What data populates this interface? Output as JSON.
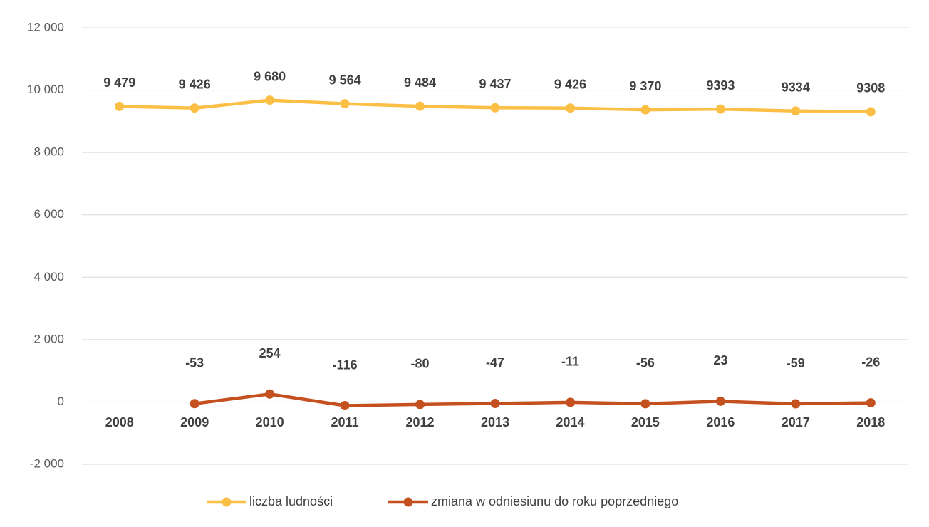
{
  "chart_data": {
    "type": "line",
    "categories": [
      "2008",
      "2009",
      "2010",
      "2011",
      "2012",
      "2013",
      "2014",
      "2015",
      "2016",
      "2017",
      "2018"
    ],
    "series": [
      {
        "name": "liczba ludności",
        "color": "#fbbf45",
        "values": [
          9479,
          9426,
          9680,
          9564,
          9484,
          9437,
          9426,
          9370,
          9393,
          9334,
          9308
        ],
        "value_labels": [
          "9 479",
          "9 426",
          "9 680",
          "9 564",
          "9 484",
          "9 437",
          "9 426",
          "9 370",
          "9393",
          "9334",
          "9308"
        ]
      },
      {
        "name": "zmiana w odniesiunu do roku poprzedniego",
        "color": "#c4501f",
        "values": [
          null,
          -53,
          254,
          -116,
          -80,
          -47,
          -11,
          -56,
          23,
          -59,
          -26
        ]
      }
    ],
    "ylim": [
      -2000,
      12000
    ],
    "yticks": [
      {
        "value": -2000,
        "label": "-2 000"
      },
      0,
      {
        "value": 2000,
        "label": "2 000"
      },
      {
        "value": 4000,
        "label": "4 000"
      },
      {
        "value": 6000,
        "label": "6 000"
      },
      {
        "value": 8000,
        "label": "8 000"
      },
      {
        "value": 10000,
        "label": "10 000"
      },
      {
        "value": 12000,
        "label": "12 000"
      }
    ],
    "grid": true,
    "legend": "bottom"
  }
}
